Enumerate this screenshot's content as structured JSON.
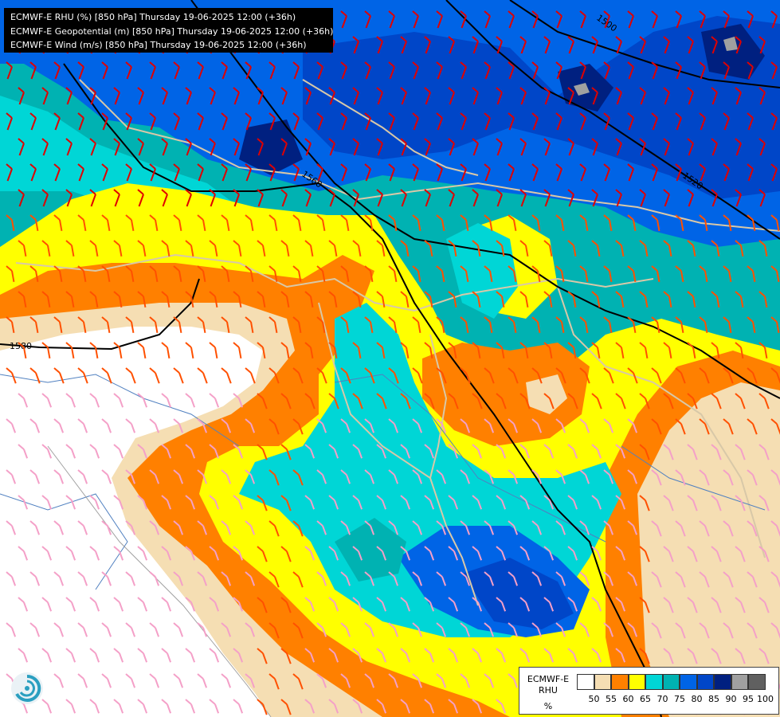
{
  "header": {
    "line1": "ECMWF-E RHU (%) [850 hPa] Thursday 19-06-2025 12:00 (+36h)",
    "line2": "ECMWF-E Geopotential (m) [850 hPa] Thursday 19-06-2025 12:00 (+36h)",
    "line3": "ECMWF-E Wind (m/s) [850 hPa] Thursday 19-06-2025 12:00 (+36h)"
  },
  "contours": {
    "label_1500": "1500",
    "label_1520": "1520",
    "label_1560": "1560",
    "label_1580": "1580"
  },
  "legend": {
    "title_line1": "ECMWF-E",
    "title_line2": "RHU",
    "unit": "%",
    "colors": [
      "#ffffff",
      "#f5deb3",
      "#ff8000",
      "#ffff00",
      "#00d6d6",
      "#00b2b2",
      "#0064e6",
      "#0046c8",
      "#002080",
      "#a0a0a0",
      "#606060"
    ],
    "ticks": [
      "50",
      "55",
      "60",
      "65",
      "70",
      "75",
      "80",
      "85",
      "90",
      "95",
      "100"
    ]
  },
  "colors": {
    "rhu_below_50": "#ffffff",
    "rhu_50": "#f5deb3",
    "rhu_55": "#ff8000",
    "rhu_60": "#ffff00",
    "rhu_65": "#00d6d6",
    "rhu_70": "#00b2b2",
    "rhu_75": "#0064e6",
    "rhu_80": "#0046c8",
    "rhu_85": "#002080",
    "barb_light": "#f4a0c8",
    "barb_medium": "#ff5000",
    "barb_strong": "#e00000",
    "border": "#d8c8a8"
  }
}
